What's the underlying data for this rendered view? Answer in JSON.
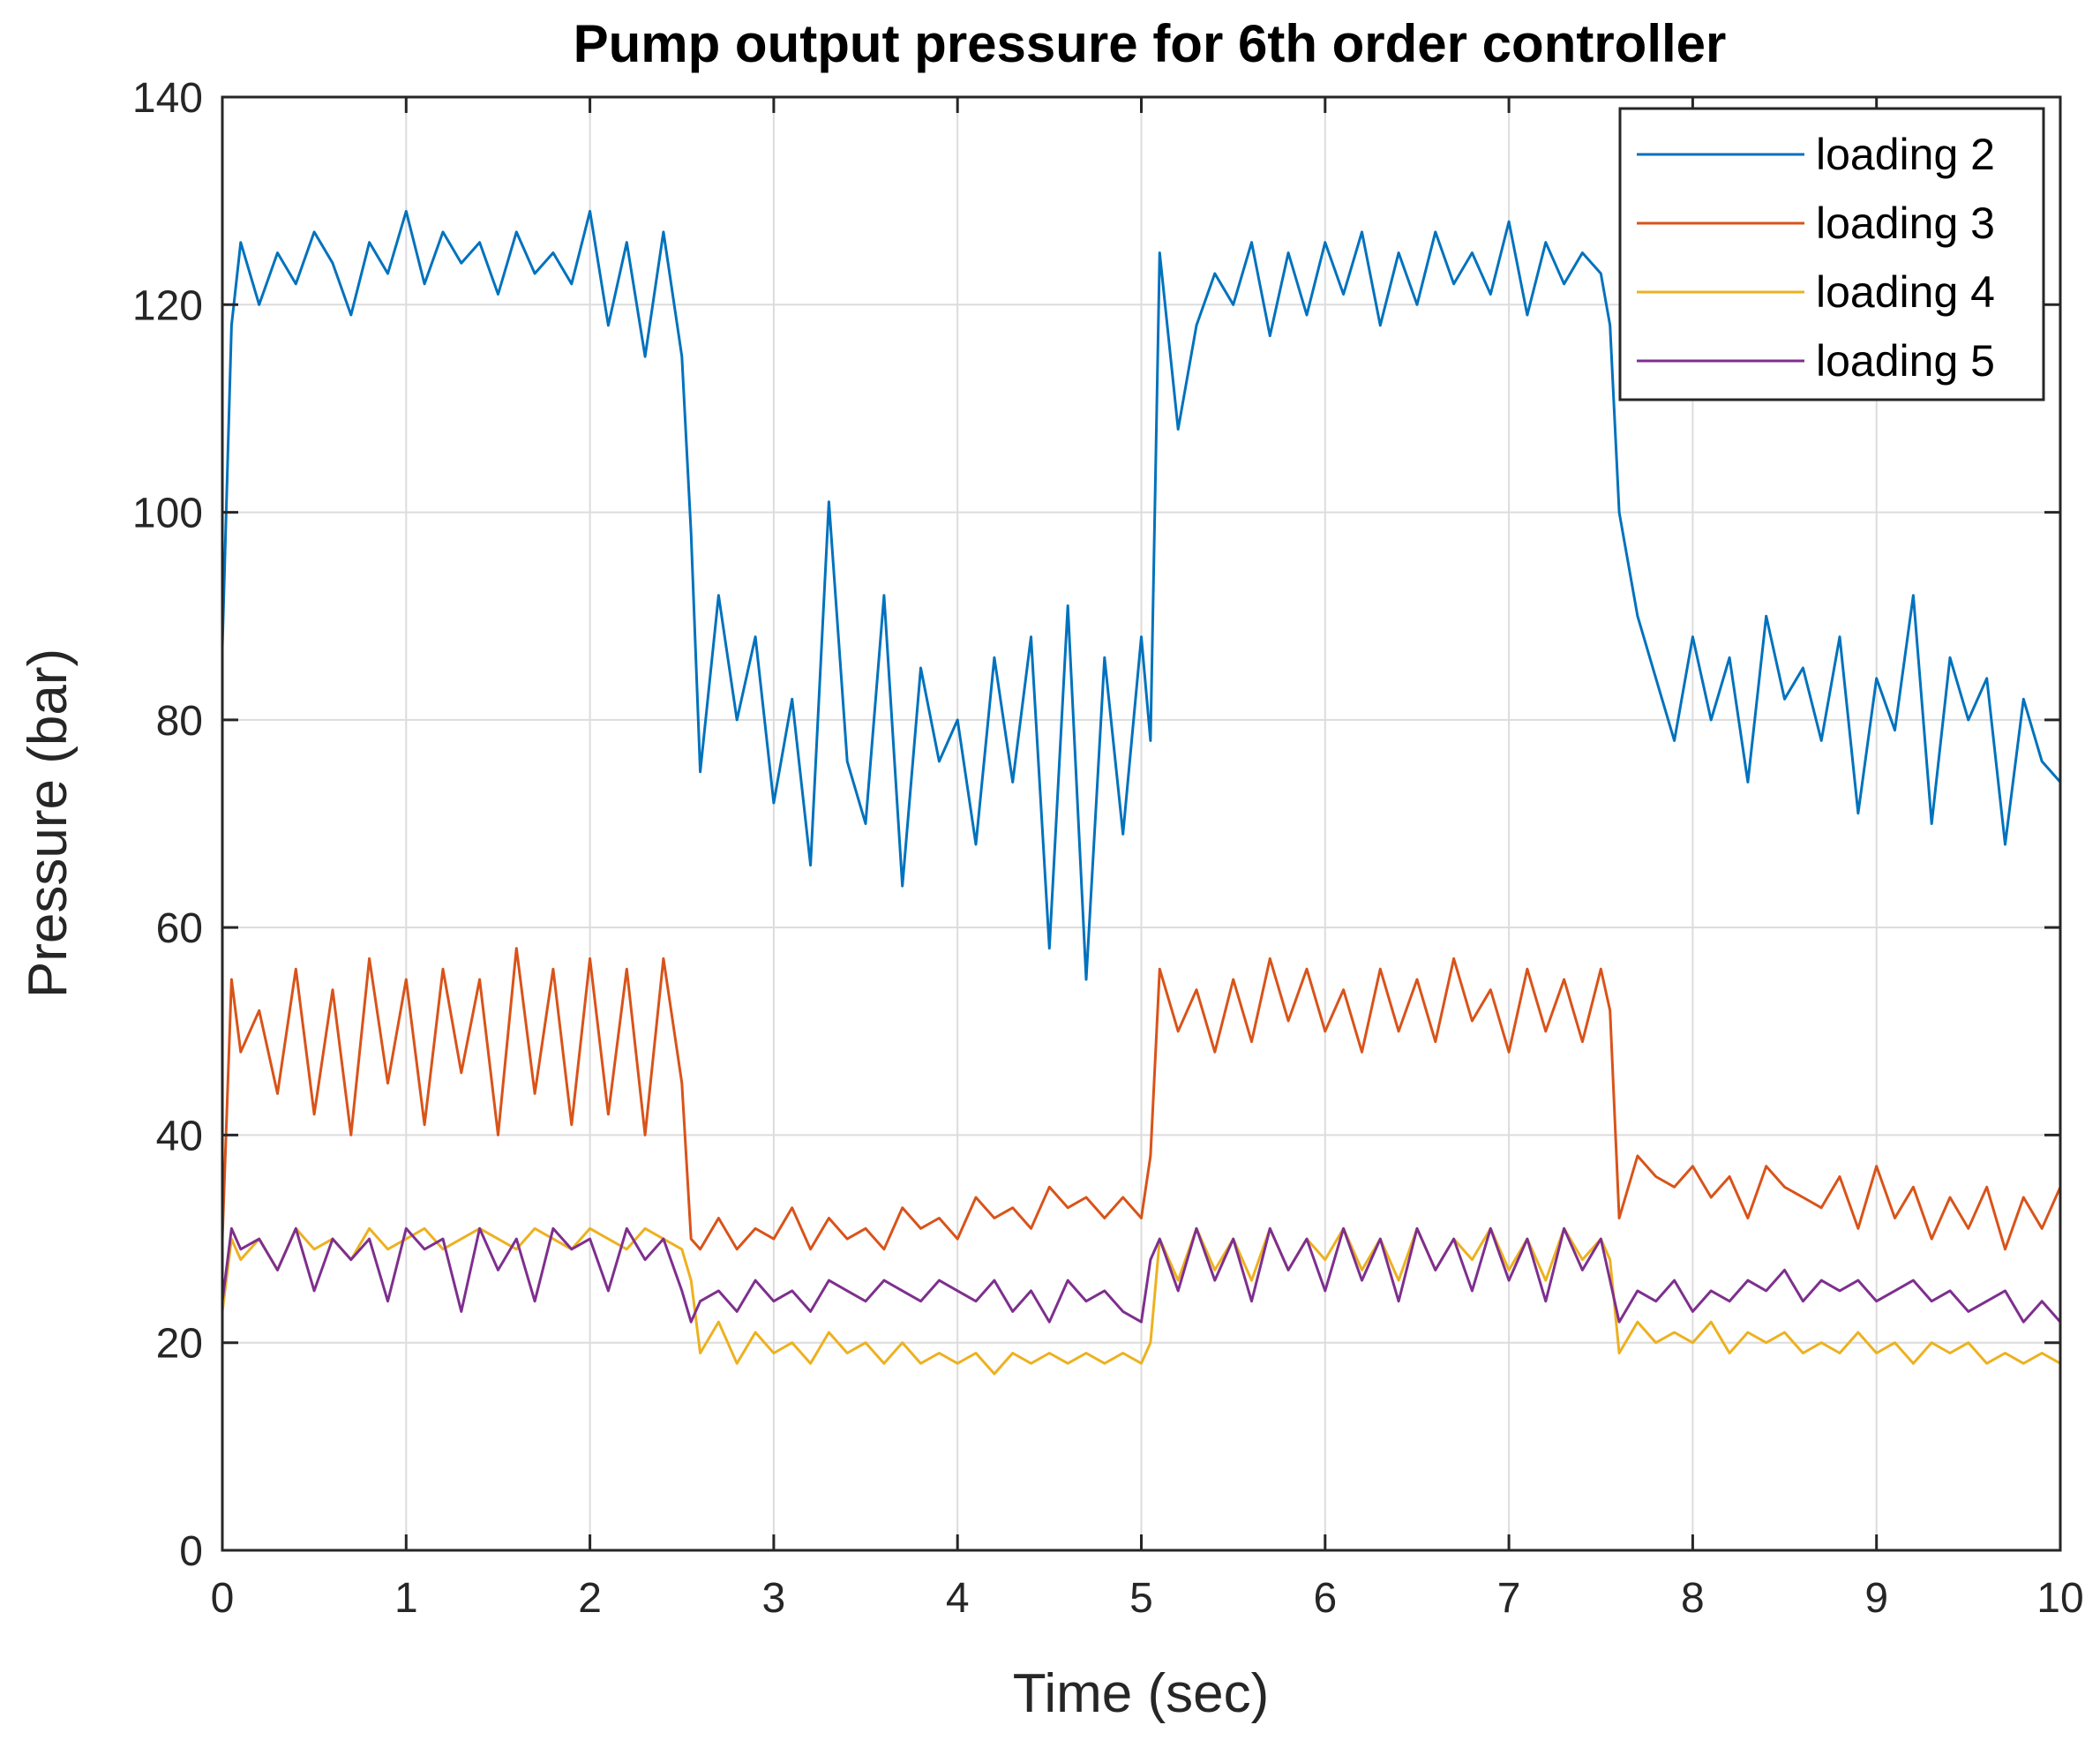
{
  "chart_data": {
    "type": "line",
    "title": "Pump output pressure for 6th order controller",
    "xlabel": "Time (sec)",
    "ylabel": "Pressure (bar)",
    "xlim": [
      0,
      10
    ],
    "ylim": [
      0,
      140
    ],
    "xticks": [
      0,
      1,
      2,
      3,
      4,
      5,
      6,
      7,
      8,
      9,
      10
    ],
    "yticks": [
      0,
      20,
      40,
      60,
      80,
      100,
      120,
      140
    ],
    "grid": true,
    "legend_position": "top-right",
    "x": [
      0,
      0.05,
      0.1,
      0.2,
      0.3,
      0.4,
      0.5,
      0.6,
      0.7,
      0.8,
      0.9,
      1.0,
      1.1,
      1.2,
      1.3,
      1.4,
      1.5,
      1.6,
      1.7,
      1.8,
      1.9,
      2.0,
      2.1,
      2.2,
      2.3,
      2.4,
      2.5,
      2.55,
      2.6,
      2.7,
      2.8,
      2.9,
      3.0,
      3.1,
      3.2,
      3.3,
      3.4,
      3.5,
      3.6,
      3.7,
      3.8,
      3.9,
      4.0,
      4.1,
      4.2,
      4.3,
      4.4,
      4.5,
      4.6,
      4.7,
      4.8,
      4.9,
      5.0,
      5.05,
      5.1,
      5.2,
      5.3,
      5.4,
      5.5,
      5.6,
      5.7,
      5.8,
      5.9,
      6.0,
      6.1,
      6.2,
      6.3,
      6.4,
      6.5,
      6.6,
      6.7,
      6.8,
      6.9,
      7.0,
      7.1,
      7.2,
      7.3,
      7.4,
      7.5,
      7.55,
      7.6,
      7.7,
      7.8,
      7.9,
      8.0,
      8.1,
      8.2,
      8.3,
      8.4,
      8.5,
      8.6,
      8.7,
      8.8,
      8.9,
      9.0,
      9.1,
      9.2,
      9.3,
      9.4,
      9.5,
      9.6,
      9.7,
      9.8,
      9.9,
      10.0
    ],
    "series": [
      {
        "name": "loading 2",
        "color": "#0072BD",
        "values": [
          87,
          118,
          126,
          120,
          125,
          122,
          127,
          124,
          119,
          126,
          123,
          129,
          122,
          127,
          124,
          126,
          121,
          127,
          123,
          125,
          122,
          129,
          118,
          126,
          115,
          127,
          115,
          98,
          75,
          92,
          80,
          88,
          72,
          82,
          66,
          101,
          76,
          70,
          92,
          64,
          85,
          76,
          80,
          68,
          86,
          74,
          88,
          58,
          91,
          55,
          86,
          69,
          88,
          78,
          125,
          108,
          118,
          123,
          120,
          126,
          117,
          125,
          119,
          126,
          121,
          127,
          118,
          125,
          120,
          127,
          122,
          125,
          121,
          128,
          119,
          126,
          122,
          125,
          123,
          118,
          100,
          90,
          84,
          78,
          88,
          80,
          86,
          74,
          90,
          82,
          85,
          78,
          88,
          71,
          84,
          79,
          92,
          70,
          86,
          80,
          84,
          68,
          82,
          76,
          74
        ]
      },
      {
        "name": "loading 3",
        "color": "#D95319",
        "values": [
          30,
          55,
          48,
          52,
          44,
          56,
          42,
          54,
          40,
          57,
          45,
          55,
          41,
          56,
          46,
          55,
          40,
          58,
          44,
          56,
          41,
          57,
          42,
          56,
          40,
          57,
          45,
          30,
          29,
          32,
          29,
          31,
          30,
          33,
          29,
          32,
          30,
          31,
          29,
          33,
          31,
          32,
          30,
          34,
          32,
          33,
          31,
          35,
          33,
          34,
          32,
          34,
          32,
          38,
          56,
          50,
          54,
          48,
          55,
          49,
          57,
          51,
          56,
          50,
          54,
          48,
          56,
          50,
          55,
          49,
          57,
          51,
          54,
          48,
          56,
          50,
          55,
          49,
          56,
          52,
          32,
          38,
          36,
          35,
          37,
          34,
          36,
          32,
          37,
          35,
          34,
          33,
          36,
          31,
          37,
          32,
          35,
          30,
          34,
          31,
          35,
          29,
          34,
          31,
          35
        ]
      },
      {
        "name": "loading 4",
        "color": "#EDB120",
        "values": [
          23,
          30,
          28,
          30,
          27,
          31,
          29,
          30,
          28,
          31,
          29,
          30,
          31,
          29,
          30,
          31,
          30,
          29,
          31,
          30,
          29,
          31,
          30,
          29,
          31,
          30,
          29,
          26,
          19,
          22,
          18,
          21,
          19,
          20,
          18,
          21,
          19,
          20,
          18,
          20,
          18,
          19,
          18,
          19,
          17,
          19,
          18,
          19,
          18,
          19,
          18,
          19,
          18,
          20,
          30,
          26,
          31,
          27,
          30,
          26,
          31,
          27,
          30,
          28,
          31,
          27,
          30,
          26,
          31,
          27,
          30,
          28,
          31,
          27,
          30,
          26,
          31,
          28,
          30,
          28,
          19,
          22,
          20,
          21,
          20,
          22,
          19,
          21,
          20,
          21,
          19,
          20,
          19,
          21,
          19,
          20,
          18,
          20,
          19,
          20,
          18,
          19,
          18,
          19,
          18
        ]
      },
      {
        "name": "loading 5",
        "color": "#7E2F8E",
        "values": [
          24,
          31,
          29,
          30,
          27,
          31,
          25,
          30,
          28,
          30,
          24,
          31,
          29,
          30,
          23,
          31,
          27,
          30,
          24,
          31,
          29,
          30,
          25,
          31,
          28,
          30,
          25,
          22,
          24,
          25,
          23,
          26,
          24,
          25,
          23,
          26,
          25,
          24,
          26,
          25,
          24,
          26,
          25,
          24,
          26,
          23,
          25,
          22,
          26,
          24,
          25,
          23,
          22,
          28,
          30,
          25,
          31,
          26,
          30,
          24,
          31,
          27,
          30,
          25,
          31,
          26,
          30,
          24,
          31,
          27,
          30,
          25,
          31,
          26,
          30,
          24,
          31,
          27,
          30,
          26,
          22,
          25,
          24,
          26,
          23,
          25,
          24,
          26,
          25,
          27,
          24,
          26,
          25,
          26,
          24,
          25,
          26,
          24,
          25,
          23,
          24,
          25,
          22,
          24,
          22
        ]
      }
    ]
  }
}
